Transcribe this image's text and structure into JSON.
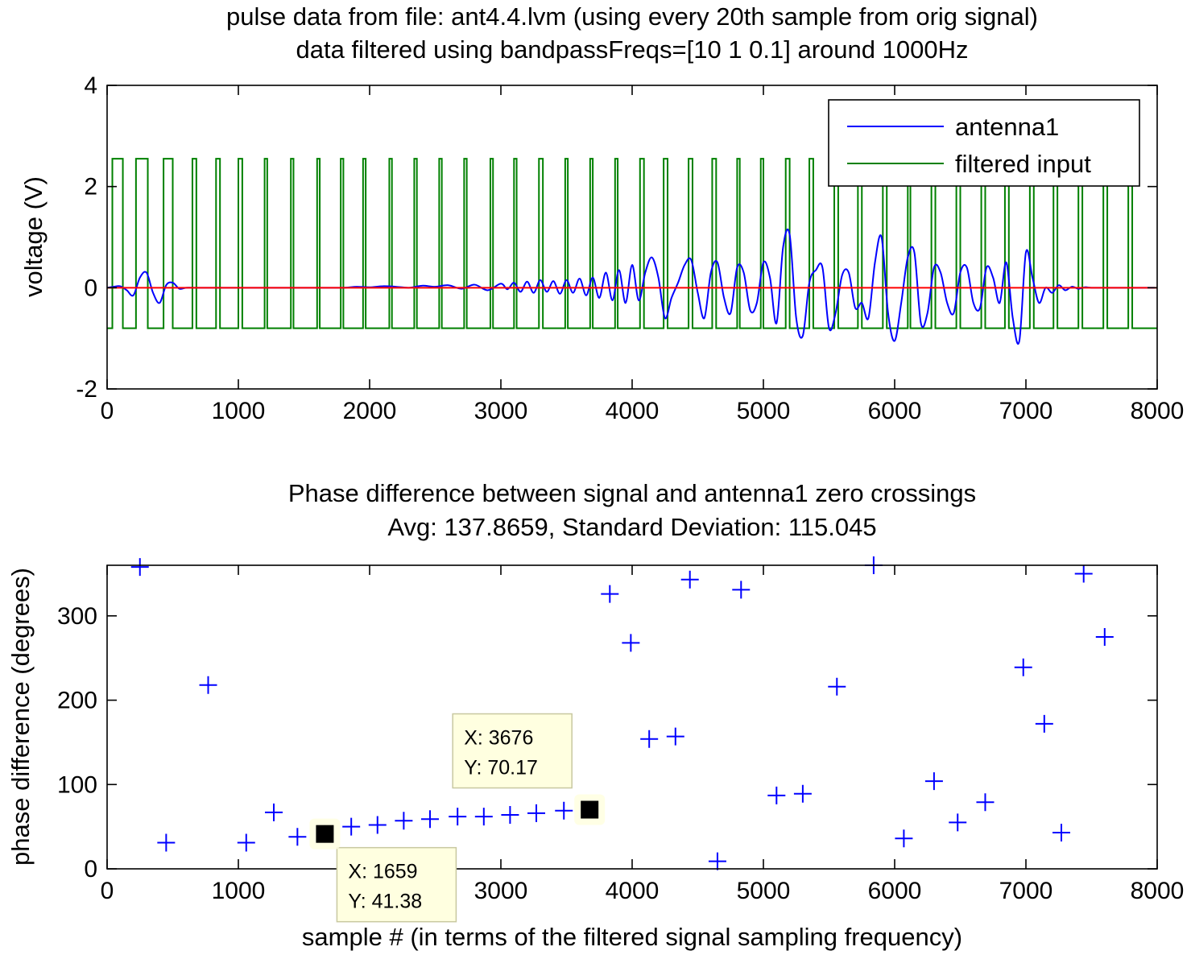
{
  "colors": {
    "antenna": "#0000ff",
    "filtered": "#008000",
    "zero_line": "#ff0000",
    "marker": "#0000ff",
    "tooltip_bg": "#ffffe0",
    "tooltip_border": "#c8c8a0"
  },
  "chart_data": [
    {
      "type": "line",
      "title": [
        "pulse data from file: ant4.4.lvm (using every 20th sample from orig signal)",
        "data filtered using bandpassFreqs=[10         1       0.1] around 1000Hz"
      ],
      "xlabel": "",
      "ylabel": "voltage (V)",
      "xlim": [
        0,
        8000
      ],
      "ylim": [
        -2,
        4
      ],
      "xticks": [
        "0",
        "1000",
        "2000",
        "3000",
        "4000",
        "5000",
        "6000",
        "7000",
        "8000"
      ],
      "yticks": [
        "-2",
        "0",
        "2",
        "4"
      ],
      "legend": {
        "position": "top-right",
        "entries": [
          "antenna1",
          "filtered input"
        ]
      },
      "series": [
        {
          "name": "antenna1",
          "color": "#0000ff",
          "x": [
            0,
            50,
            100,
            150,
            200,
            250,
            300,
            350,
            400,
            450,
            500,
            550,
            600,
            650,
            700,
            800,
            1000,
            1200,
            1400,
            1600,
            1800,
            1900,
            2000,
            2100,
            2200,
            2300,
            2400,
            2500,
            2600,
            2700,
            2800,
            2900,
            3000,
            3050,
            3100,
            3150,
            3200,
            3250,
            3300,
            3350,
            3400,
            3450,
            3500,
            3550,
            3600,
            3650,
            3700,
            3750,
            3800,
            3850,
            3900,
            3950,
            4000,
            4050,
            4100,
            4150,
            4200,
            4250,
            4300,
            4350,
            4400,
            4450,
            4500,
            4550,
            4600,
            4650,
            4700,
            4750,
            4800,
            4850,
            4900,
            4950,
            5000,
            5050,
            5100,
            5150,
            5200,
            5250,
            5300,
            5350,
            5400,
            5450,
            5500,
            5550,
            5600,
            5650,
            5700,
            5750,
            5800,
            5850,
            5900,
            5950,
            6000,
            6050,
            6100,
            6150,
            6200,
            6250,
            6300,
            6350,
            6400,
            6450,
            6500,
            6550,
            6600,
            6650,
            6700,
            6750,
            6800,
            6850,
            6900,
            6950,
            7000,
            7050,
            7100,
            7150,
            7200,
            7250,
            7300,
            7350,
            7400,
            7450,
            7500,
            7600,
            7700,
            7800,
            7980
          ],
          "y": [
            0,
            0.02,
            0.03,
            -0.05,
            -0.15,
            0.2,
            0.3,
            -0.1,
            -0.3,
            0.05,
            0.1,
            -0.02,
            0,
            0,
            0,
            0,
            0,
            0,
            0,
            0,
            0,
            0.02,
            0.01,
            0.03,
            0.02,
            0,
            0.04,
            0.02,
            0.05,
            -0.02,
            0.06,
            -0.05,
            0.08,
            -0.03,
            0.1,
            -0.08,
            0.12,
            -0.1,
            0.15,
            -0.08,
            0.13,
            -0.12,
            0.15,
            -0.1,
            0.18,
            -0.15,
            0.2,
            -0.2,
            0.3,
            -0.25,
            0.35,
            -0.3,
            0.45,
            -0.25,
            0.3,
            0.6,
            0.2,
            -0.6,
            -0.2,
            0.1,
            0.45,
            0.55,
            -0.1,
            -0.6,
            0.3,
            0.5,
            -0.2,
            -0.5,
            0.4,
            0.3,
            -0.45,
            -0.3,
            0.5,
            0.2,
            -0.7,
            0.8,
            1.05,
            -0.6,
            -0.95,
            0.1,
            0.35,
            0.4,
            -0.8,
            -0.5,
            0.25,
            0.3,
            -0.4,
            -0.3,
            -0.6,
            0.5,
            1.0,
            -0.5,
            -1.05,
            -0.3,
            0.6,
            0.7,
            -0.7,
            -0.5,
            0.4,
            0.3,
            -0.3,
            -0.5,
            0.3,
            0.4,
            -0.3,
            -0.4,
            0.4,
            0.2,
            -0.3,
            0.5,
            -0.6,
            -1.05,
            0.7,
            0.2,
            -0.3,
            0,
            -0.1,
            0.05,
            -0.05,
            0.02,
            -0.02,
            0.01,
            0,
            0,
            0,
            0,
            0
          ]
        },
        {
          "name": "filtered input",
          "color": "#008000",
          "high": 2.55,
          "low": -0.8,
          "pulses": [
            [
              40,
              120
            ],
            [
              220,
              310
            ],
            [
              430,
              500
            ],
            [
              650,
              680
            ],
            [
              830,
              860
            ],
            [
              1000,
              1030
            ],
            [
              1200,
              1220
            ],
            [
              1400,
              1420
            ],
            [
              1600,
              1620
            ],
            [
              1780,
              1800
            ],
            [
              1950,
              1970
            ],
            [
              2150,
              2170
            ],
            [
              2340,
              2360
            ],
            [
              2530,
              2550
            ],
            [
              2720,
              2740
            ],
            [
              2920,
              2940
            ],
            [
              3100,
              3120
            ],
            [
              3290,
              3320
            ],
            [
              3490,
              3510
            ],
            [
              3680,
              3700
            ],
            [
              3870,
              3890
            ],
            [
              4060,
              4090
            ],
            [
              4240,
              4270
            ],
            [
              4430,
              4460
            ],
            [
              4610,
              4640
            ],
            [
              4800,
              4820
            ],
            [
              4980,
              5000
            ],
            [
              5170,
              5200
            ],
            [
              5350,
              5380
            ],
            [
              5540,
              5570
            ],
            [
              5720,
              5750
            ],
            [
              5910,
              5940
            ],
            [
              6100,
              6120
            ],
            [
              6280,
              6310
            ],
            [
              6470,
              6500
            ],
            [
              6660,
              6690
            ],
            [
              6840,
              6870
            ],
            [
              7030,
              7060
            ],
            [
              7210,
              7240
            ],
            [
              7400,
              7430
            ],
            [
              7590,
              7620
            ],
            [
              7780,
              7810
            ]
          ]
        },
        {
          "name": "",
          "color": "#ff0000",
          "x": [
            0,
            8000
          ],
          "y": [
            0,
            0
          ]
        }
      ]
    },
    {
      "type": "scatter",
      "title": [
        "Phase difference between signal and antenna1 zero crossings",
        "Avg: 137.8659, Standard Deviation: 115.045"
      ],
      "xlabel": "sample # (in terms of the filtered signal sampling frequency)",
      "ylabel": "phase difference (degrees)",
      "xlim": [
        0,
        8000
      ],
      "ylim": [
        0,
        360
      ],
      "xticks": [
        "0",
        "1000",
        "2000",
        "3000",
        "4000",
        "5000",
        "6000",
        "7000",
        "8000"
      ],
      "yticks": [
        "0",
        "100",
        "200",
        "300"
      ],
      "grid": false,
      "series": [
        {
          "name": "",
          "marker": "+",
          "color": "#0000ff",
          "x": [
            250,
            450,
            770,
            1060,
            1270,
            1450,
            1659,
            1860,
            2060,
            2260,
            2460,
            2670,
            2870,
            3070,
            3270,
            3480,
            3676,
            3830,
            3990,
            4130,
            4330,
            4440,
            4650,
            4830,
            5100,
            5300,
            5560,
            5840,
            6070,
            6300,
            6480,
            6690,
            6980,
            7140,
            7270,
            7440,
            7600
          ],
          "y": [
            358,
            31,
            218,
            31,
            67,
            38,
            41.38,
            50,
            52,
            57,
            59,
            62,
            62,
            64,
            66,
            69,
            70.17,
            326,
            268,
            154,
            157,
            343,
            9,
            331,
            87,
            89,
            216,
            360,
            36,
            104,
            55,
            79,
            239,
            172,
            43,
            350,
            275
          ]
        }
      ],
      "annotations": [
        {
          "x": 1659,
          "y": 41.38,
          "x_text": "X: 1659",
          "y_text": "Y: 41.38",
          "placement": "below-right"
        },
        {
          "x": 3676,
          "y": 70.17,
          "x_text": "X: 3676",
          "y_text": "Y: 70.17",
          "placement": "above-left"
        }
      ]
    }
  ]
}
